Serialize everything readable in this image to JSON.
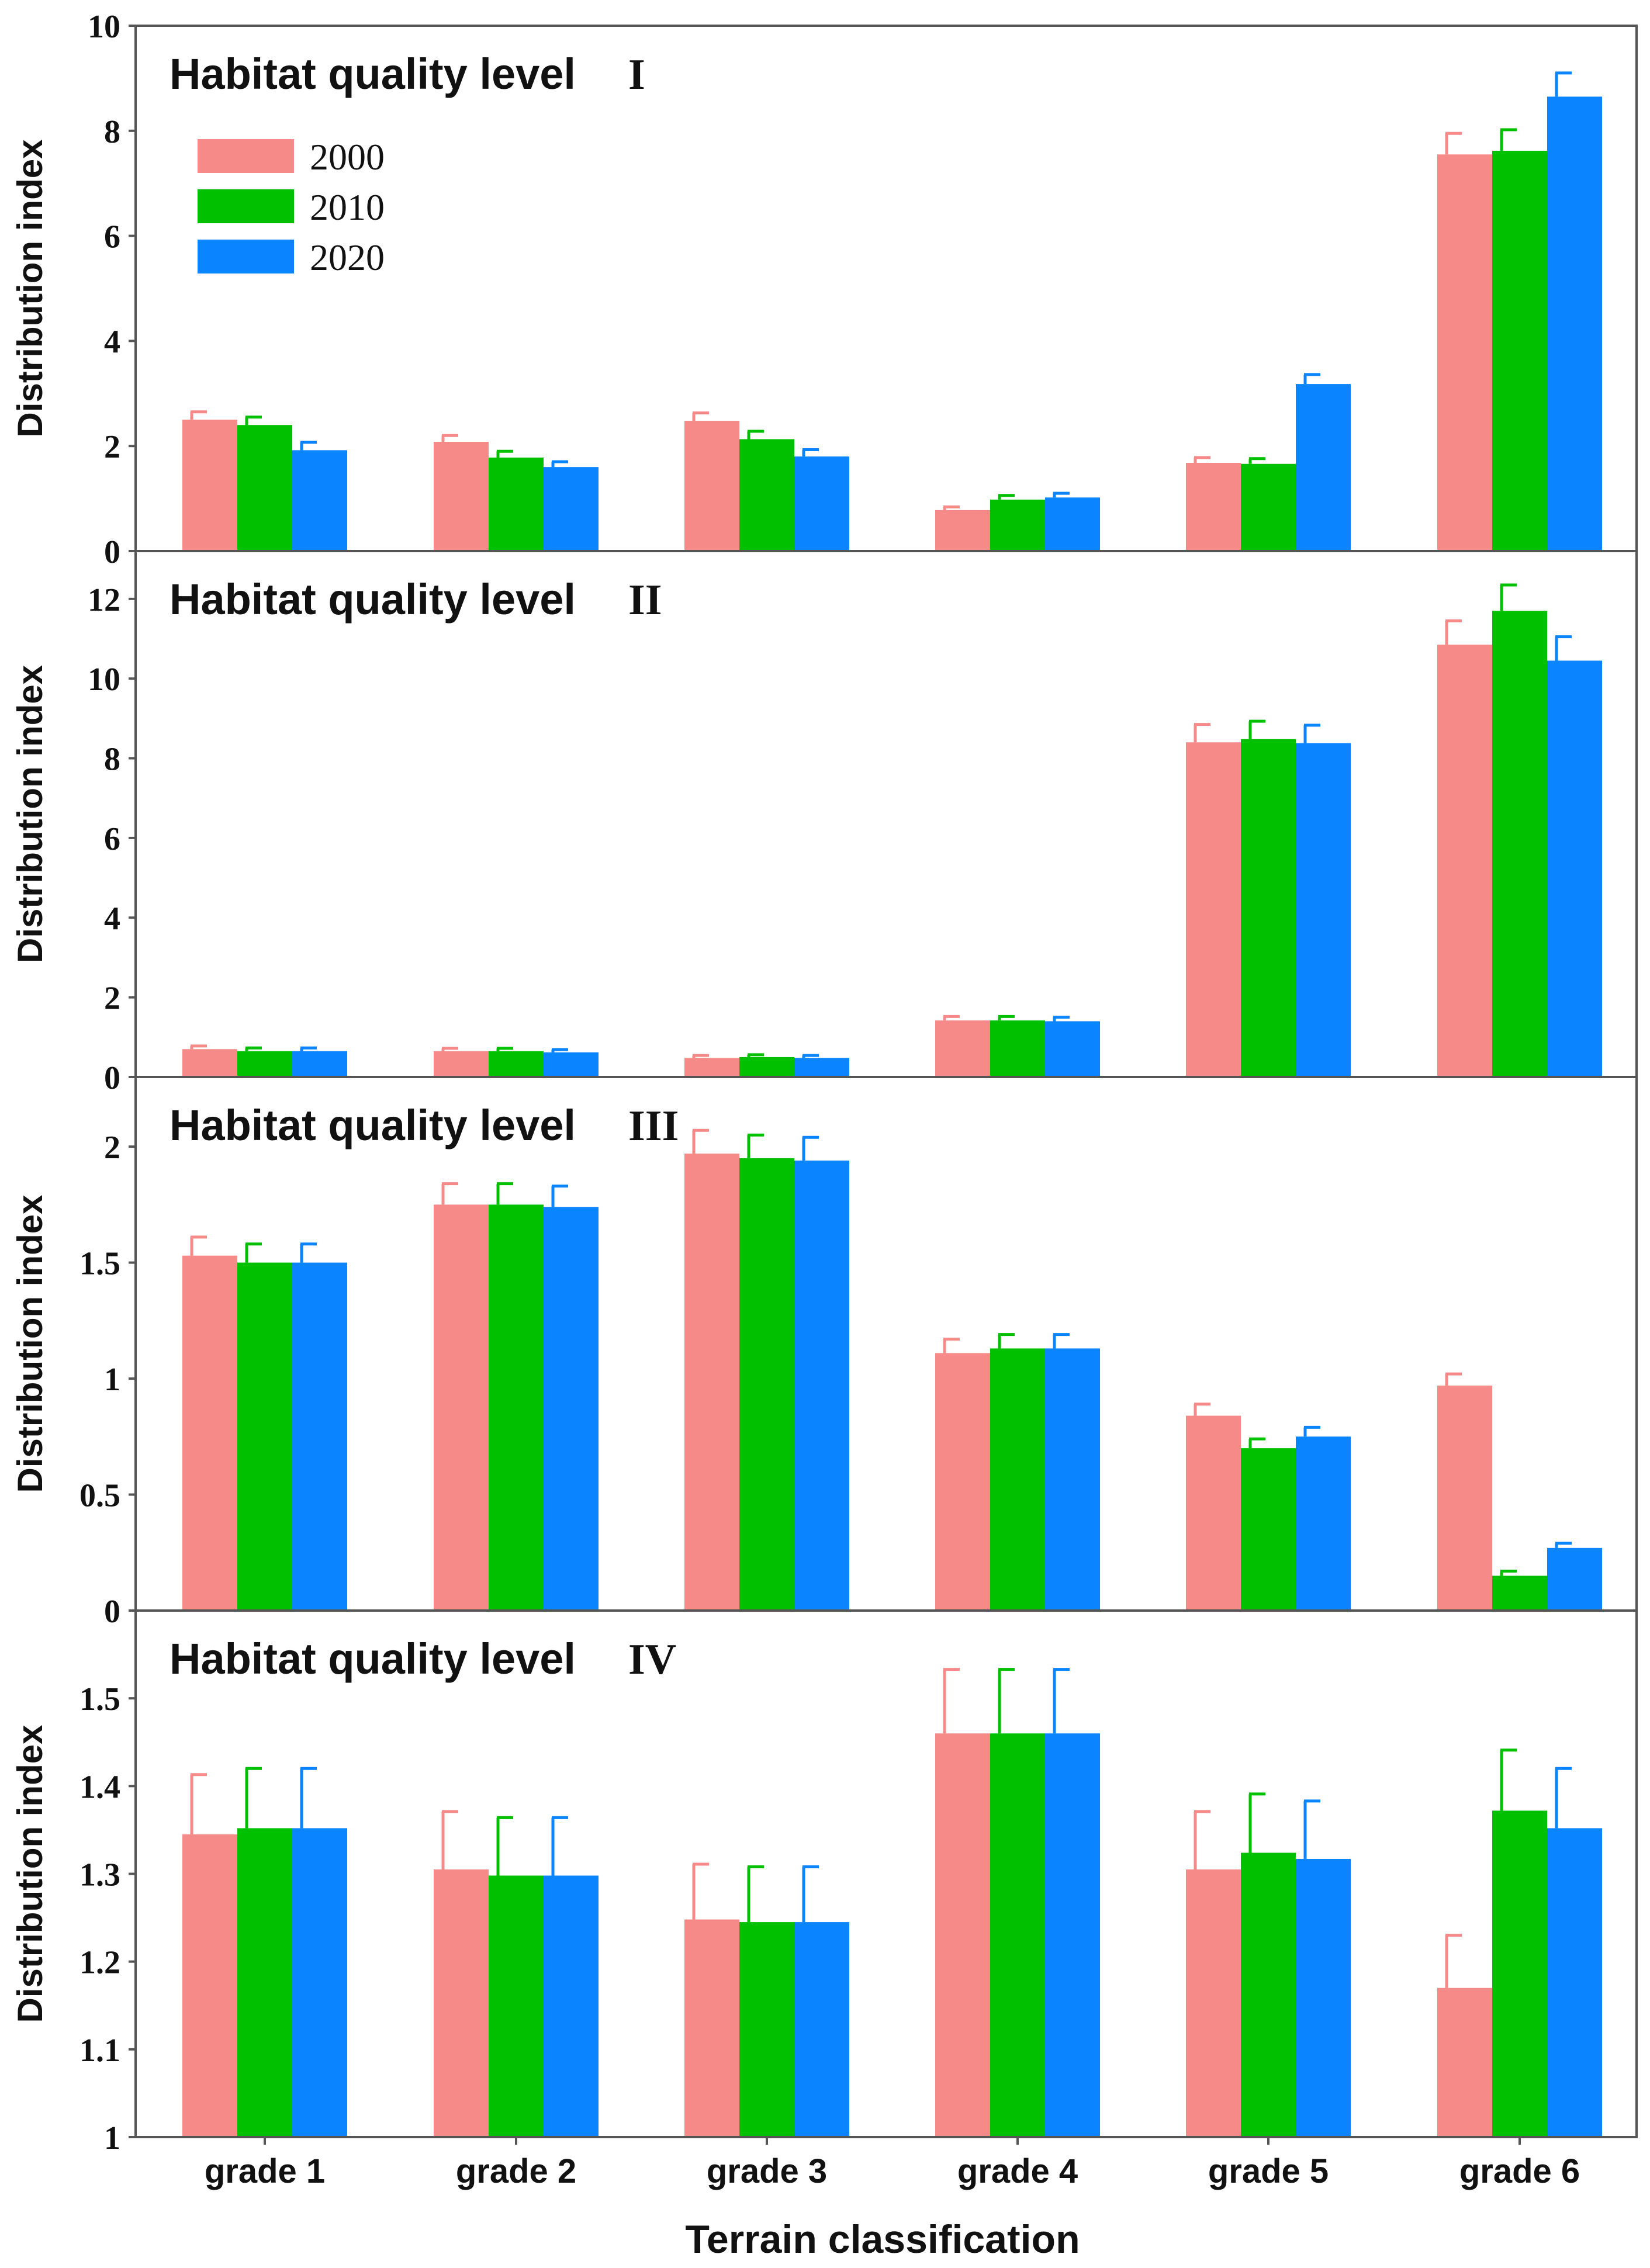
{
  "chart_data": {
    "type": "bar",
    "xlabel": "Terrain classification",
    "categories": [
      "grade 1",
      "grade 2",
      "grade 3",
      "grade 4",
      "grade 5",
      "grade 6"
    ],
    "legend": {
      "placement": "top-left",
      "entries": [
        {
          "name": "2000",
          "color": "#F58A88"
        },
        {
          "name": "2010",
          "color": "#00C000"
        },
        {
          "name": "2020",
          "color": "#0A84FF"
        }
      ]
    },
    "panels": [
      {
        "title": "Habitat quality level",
        "roman": "I",
        "ylabel": "Distribution index",
        "ylim": [
          0,
          10
        ],
        "yticks": [
          0,
          2,
          4,
          6,
          8,
          10
        ],
        "tick_labels": [
          "0",
          "2",
          "4",
          "6",
          "8",
          "10"
        ],
        "series": [
          {
            "name": "2000",
            "values": [
              2.5,
              2.08,
              2.48,
              0.78,
              1.68,
              7.55
            ],
            "errors": [
              0.15,
              0.12,
              0.15,
              0.06,
              0.1,
              0.4
            ]
          },
          {
            "name": "2010",
            "values": [
              2.4,
              1.78,
              2.13,
              0.98,
              1.66,
              7.62
            ],
            "errors": [
              0.15,
              0.12,
              0.15,
              0.08,
              0.1,
              0.4
            ]
          },
          {
            "name": "2020",
            "values": [
              1.92,
              1.6,
              1.8,
              1.02,
              3.18,
              8.65
            ],
            "errors": [
              0.15,
              0.1,
              0.13,
              0.08,
              0.18,
              0.45
            ]
          }
        ]
      },
      {
        "title": "Habitat quality level",
        "roman": "II",
        "ylabel": "Distribution index",
        "ylim": [
          0,
          13.2
        ],
        "yticks": [
          0,
          2,
          4,
          6,
          8,
          10,
          12
        ],
        "tick_labels": [
          "0",
          "2",
          "4",
          "6",
          "8",
          "10",
          "12"
        ],
        "series": [
          {
            "name": "2000",
            "values": [
              0.7,
              0.65,
              0.48,
              1.42,
              8.4,
              10.85
            ],
            "errors": [
              0.08,
              0.07,
              0.06,
              0.1,
              0.45,
              0.6
            ]
          },
          {
            "name": "2010",
            "values": [
              0.65,
              0.65,
              0.5,
              1.42,
              8.48,
              11.7
            ],
            "errors": [
              0.08,
              0.07,
              0.06,
              0.1,
              0.45,
              0.65
            ]
          },
          {
            "name": "2020",
            "values": [
              0.65,
              0.62,
              0.48,
              1.4,
              8.38,
              10.45
            ],
            "errors": [
              0.08,
              0.07,
              0.06,
              0.1,
              0.45,
              0.6
            ]
          }
        ]
      },
      {
        "title": "Habitat quality level",
        "roman": "III",
        "ylabel": "Distribution index",
        "ylim": [
          0,
          2.3
        ],
        "yticks": [
          0,
          0.5,
          1,
          1.5,
          2
        ],
        "tick_labels": [
          "0",
          "0.5",
          "1",
          "1.5",
          "2"
        ],
        "series": [
          {
            "name": "2000",
            "values": [
              1.53,
              1.75,
              1.97,
              1.11,
              0.84,
              0.97
            ],
            "errors": [
              0.08,
              0.09,
              0.1,
              0.06,
              0.05,
              0.05
            ]
          },
          {
            "name": "2010",
            "values": [
              1.5,
              1.75,
              1.95,
              1.13,
              0.7,
              0.15
            ],
            "errors": [
              0.08,
              0.09,
              0.1,
              0.06,
              0.04,
              0.02
            ]
          },
          {
            "name": "2020",
            "values": [
              1.5,
              1.74,
              1.94,
              1.13,
              0.75,
              0.27
            ],
            "errors": [
              0.08,
              0.09,
              0.1,
              0.06,
              0.04,
              0.02
            ]
          }
        ]
      },
      {
        "title": "Habitat quality level",
        "roman": "IV",
        "ylabel": "Distribution index",
        "ylim": [
          1,
          1.6
        ],
        "yticks": [
          1,
          1.1,
          1.2,
          1.3,
          1.4,
          1.5
        ],
        "tick_labels": [
          "1",
          "1.1",
          "1.2",
          "1.3",
          "1.4",
          "1.5"
        ],
        "series": [
          {
            "name": "2000",
            "values": [
              1.345,
              1.305,
              1.248,
              1.46,
              1.305,
              1.17
            ],
            "errors": [
              0.068,
              0.066,
              0.063,
              0.073,
              0.066,
              0.06
            ]
          },
          {
            "name": "2010",
            "values": [
              1.352,
              1.298,
              1.245,
              1.46,
              1.324,
              1.372
            ],
            "errors": [
              0.068,
              0.066,
              0.063,
              0.073,
              0.067,
              0.069
            ]
          },
          {
            "name": "2020",
            "values": [
              1.352,
              1.298,
              1.245,
              1.46,
              1.317,
              1.352
            ],
            "errors": [
              0.068,
              0.066,
              0.063,
              0.073,
              0.066,
              0.068
            ]
          }
        ]
      }
    ]
  }
}
